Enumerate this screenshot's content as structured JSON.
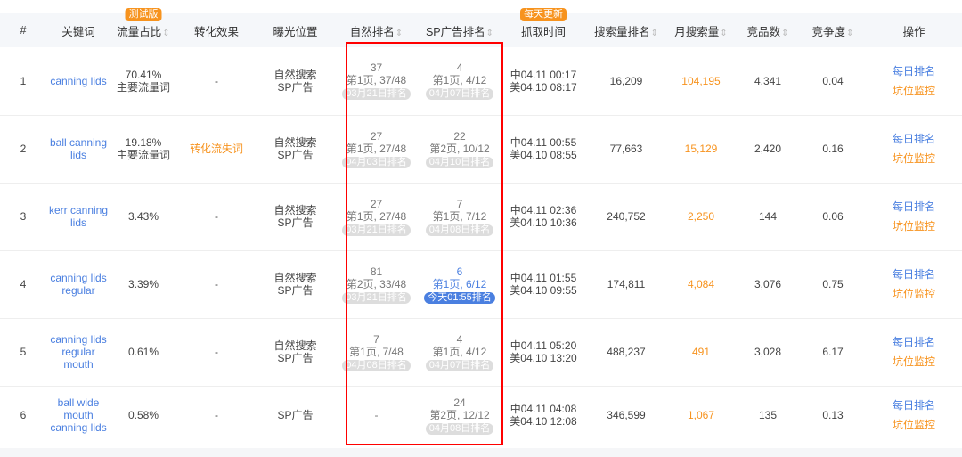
{
  "header": {
    "cols": [
      "#",
      "关键词",
      "流量占比",
      "转化效果",
      "曝光位置",
      "自然排名",
      "SP广告排名",
      "抓取时间",
      "搜索量排名",
      "月搜索量",
      "竞品数",
      "竞争度",
      "操作"
    ],
    "beta_tag": "测试版",
    "daily_tag": "每天更新",
    "sort_icon": "⇕"
  },
  "rows": [
    {
      "no": "1",
      "keyword": "canning lids",
      "share": "70.41%",
      "share_note": "主要流量词",
      "conversion": "-",
      "exposure1": "自然搜索",
      "exposure2": "SP广告",
      "nat_rank": "37",
      "nat_page": "第1页, 37/48",
      "nat_date": "03月21日排名",
      "sp_rank": "4",
      "sp_page": "第1页, 4/12",
      "sp_date": "04月07日排名",
      "cn_time": "中04.11 00:17",
      "us_time": "美04.10 08:17",
      "search_rank": "16,209",
      "monthly": "104,195",
      "competitors": "4,341",
      "degree": "0.04",
      "op1": "每日排名",
      "op2": "坑位监控"
    },
    {
      "no": "2",
      "keyword": "ball canning lids",
      "share": "19.18%",
      "share_note": "主要流量词",
      "conversion": "转化流失词",
      "exposure1": "自然搜索",
      "exposure2": "SP广告",
      "nat_rank": "27",
      "nat_page": "第1页, 27/48",
      "nat_date": "04月03日排名",
      "sp_rank": "22",
      "sp_page": "第2页, 10/12",
      "sp_date": "04月10日排名",
      "cn_time": "中04.11 00:55",
      "us_time": "美04.10 08:55",
      "search_rank": "77,663",
      "monthly": "15,129",
      "competitors": "2,420",
      "degree": "0.16",
      "op1": "每日排名",
      "op2": "坑位监控"
    },
    {
      "no": "3",
      "keyword": "kerr canning lids",
      "share": "3.43%",
      "share_note": "",
      "conversion": "-",
      "exposure1": "自然搜索",
      "exposure2": "SP广告",
      "nat_rank": "27",
      "nat_page": "第1页, 27/48",
      "nat_date": "03月21日排名",
      "sp_rank": "7",
      "sp_page": "第1页, 7/12",
      "sp_date": "04月08日排名",
      "cn_time": "中04.11 02:36",
      "us_time": "美04.10 10:36",
      "search_rank": "240,752",
      "monthly": "2,250",
      "competitors": "144",
      "degree": "0.06",
      "op1": "每日排名",
      "op2": "坑位监控"
    },
    {
      "no": "4",
      "keyword": "canning lids regular",
      "share": "3.39%",
      "share_note": "",
      "conversion": "-",
      "exposure1": "自然搜索",
      "exposure2": "SP广告",
      "nat_rank": "81",
      "nat_page": "第2页, 33/48",
      "nat_date": "03月21日排名",
      "sp_rank": "6",
      "sp_page": "第1页, 6/12",
      "sp_date": "今天01:55排名",
      "sp_today": true,
      "cn_time": "中04.11 01:55",
      "us_time": "美04.10 09:55",
      "search_rank": "174,811",
      "monthly": "4,084",
      "competitors": "3,076",
      "degree": "0.75",
      "op1": "每日排名",
      "op2": "坑位监控"
    },
    {
      "no": "5",
      "keyword": "canning lids regular mouth",
      "share": "0.61%",
      "share_note": "",
      "conversion": "-",
      "exposure1": "自然搜索",
      "exposure2": "SP广告",
      "nat_rank": "7",
      "nat_page": "第1页, 7/48",
      "nat_date": "04月08日排名",
      "sp_rank": "4",
      "sp_page": "第1页, 4/12",
      "sp_date": "04月07日排名",
      "cn_time": "中04.11 05:20",
      "us_time": "美04.10 13:20",
      "search_rank": "488,237",
      "monthly": "491",
      "competitors": "3,028",
      "degree": "6.17",
      "op1": "每日排名",
      "op2": "坑位监控"
    },
    {
      "no": "6",
      "keyword": "ball wide mouth canning lids",
      "share": "0.58%",
      "share_note": "",
      "conversion": "-",
      "exposure1": "SP广告",
      "exposure2": "",
      "nat_rank": "",
      "nat_page": "-",
      "nat_date": "",
      "sp_rank": "24",
      "sp_page": "第2页, 12/12",
      "sp_date": "04月08日排名",
      "cn_time": "中04.11 04:08",
      "us_time": "美04.10 12:08",
      "search_rank": "346,599",
      "monthly": "1,067",
      "competitors": "135",
      "degree": "0.13",
      "op1": "每日排名",
      "op2": "坑位监控"
    }
  ],
  "colors": {
    "accent": "#4a7fe0",
    "orange": "#f7931e",
    "highlight_box": "#ff0000"
  }
}
